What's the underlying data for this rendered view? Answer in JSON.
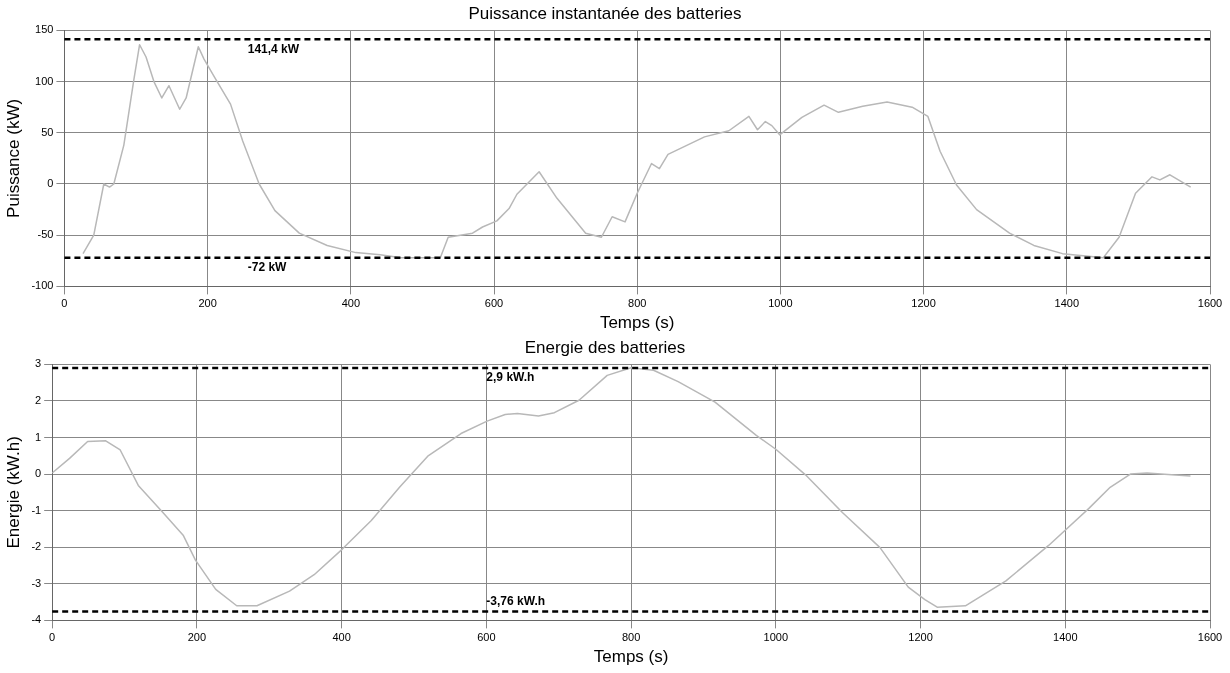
{
  "chart_data": [
    {
      "type": "line",
      "title": "Puissance instantanée des batteries",
      "xlabel": "Temps (s)",
      "ylabel": "Puissance (kW)",
      "xlim": [
        0,
        1600
      ],
      "xticks": [
        0,
        200,
        400,
        600,
        800,
        1000,
        1200,
        1400,
        1600
      ],
      "ylim": [
        -100,
        150
      ],
      "yticks": [
        -100,
        -50,
        0,
        50,
        100,
        150
      ],
      "grid": true,
      "ref_lines": [
        {
          "axis": "y",
          "value": 141.4,
          "label": "141,4 kW",
          "color": "#000000",
          "line_style": "dashed"
        },
        {
          "axis": "y",
          "value": -72,
          "label": "-72 kW",
          "color": "#000000",
          "line_style": "dashed"
        }
      ],
      "series": [
        {
          "color": "#b8b8b8",
          "x": [
            26,
            41,
            55,
            63,
            69,
            83,
            97,
            105,
            114,
            125,
            136,
            146,
            161,
            170,
            187,
            195,
            210,
            232,
            249,
            272,
            294,
            328,
            367,
            407,
            441,
            470,
            525,
            536,
            570,
            584,
            604,
            621,
            632,
            663,
            688,
            728,
            750,
            765,
            783,
            800,
            820,
            831,
            843,
            894,
            928,
            956,
            968,
            979,
            988,
            999,
            1030,
            1061,
            1081,
            1115,
            1149,
            1184,
            1206,
            1223,
            1246,
            1274,
            1320,
            1354,
            1394,
            1451,
            1473,
            1496,
            1519,
            1530,
            1544,
            1573
          ],
          "values": [
            -68,
            -50,
            0,
            -3,
            0,
            38,
            102,
            136,
            124,
            100,
            84,
            96,
            73,
            84,
            134,
            122,
            104,
            78,
            42,
            0,
            -26,
            -48,
            -60,
            -67,
            -69,
            -72,
            -72,
            -52,
            -48,
            -42,
            -36,
            -24,
            -10,
            12,
            -14,
            -48,
            -52,
            -32,
            -37,
            -9,
            20,
            15,
            29,
            46,
            52,
            66,
            53,
            61,
            57,
            48,
            65,
            77,
            70,
            76,
            80,
            75,
            66,
            32,
            -1,
            -25,
            -48,
            -60,
            -68,
            -72,
            -52,
            -9,
            7,
            4,
            9,
            -3
          ]
        }
      ]
    },
    {
      "type": "line",
      "title": "Energie des batteries",
      "xlabel": "Temps (s)",
      "ylabel": "Energie (kW.h)",
      "xlim": [
        0,
        1600
      ],
      "xticks": [
        0,
        200,
        400,
        600,
        800,
        1000,
        1200,
        1400,
        1600
      ],
      "ylim": [
        -4,
        3
      ],
      "yticks": [
        -4,
        -3,
        -2,
        -1,
        0,
        1,
        2,
        3
      ],
      "grid": true,
      "ref_lines": [
        {
          "axis": "y",
          "value": 2.9,
          "label": "2,9 kW.h",
          "color": "#000000",
          "line_style": "dashed"
        },
        {
          "axis": "y",
          "value": -3.76,
          "label": "-3,76 kW.h",
          "color": "#000000",
          "line_style": "dashed"
        }
      ],
      "series": [
        {
          "color": "#b8b8b8",
          "x": [
            0,
            24,
            49,
            74,
            94,
            119,
            153,
            181,
            198,
            226,
            255,
            283,
            328,
            362,
            401,
            441,
            480,
            519,
            565,
            601,
            626,
            643,
            672,
            694,
            728,
            767,
            800,
            831,
            865,
            916,
            973,
            1000,
            1041,
            1092,
            1144,
            1183,
            1206,
            1223,
            1262,
            1318,
            1377,
            1433,
            1462,
            1490,
            1513,
            1547,
            1573
          ],
          "values": [
            0.03,
            0.43,
            0.89,
            0.91,
            0.66,
            -0.31,
            -1.05,
            -1.67,
            -2.35,
            -3.15,
            -3.6,
            -3.6,
            -3.2,
            -2.75,
            -2.05,
            -1.27,
            -0.36,
            0.49,
            1.11,
            1.45,
            1.63,
            1.66,
            1.59,
            1.68,
            2.02,
            2.7,
            2.91,
            2.84,
            2.53,
            1.97,
            1.06,
            0.68,
            -0.02,
            -1.05,
            -2.01,
            -3.09,
            -3.43,
            -3.64,
            -3.6,
            -2.92,
            -1.95,
            -0.93,
            -0.36,
            0,
            0.03,
            -0.02,
            -0.05
          ]
        }
      ]
    }
  ]
}
